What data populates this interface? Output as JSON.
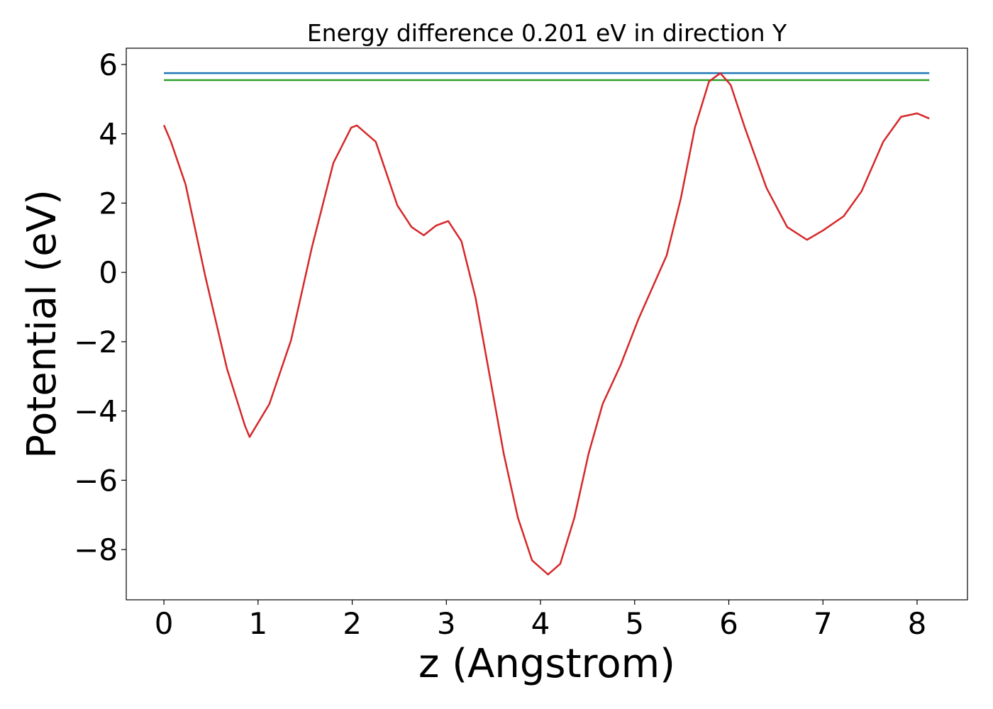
{
  "chart_data": {
    "type": "line",
    "title": "Energy difference 0.201 eV in direction Y",
    "xlabel": "z (Angstrom)",
    "ylabel": "Potential (eV)",
    "series": [
      {
        "color": "#1f77b4",
        "x": [
          0,
          8.13
        ],
        "values": [
          5.75,
          5.75
        ]
      },
      {
        "color": "#2ca02c",
        "x": [
          0,
          8.13
        ],
        "values": [
          5.55,
          5.55
        ]
      },
      {
        "color": "#d62728",
        "x": [
          0,
          0.075,
          0.23,
          0.44,
          0.67,
          0.86,
          0.91,
          1.12,
          1.35,
          1.57,
          1.8,
          1.99,
          2.05,
          2.25,
          2.48,
          2.63,
          2.76,
          2.89,
          3.02,
          3.16,
          3.31,
          3.46,
          3.61,
          3.76,
          3.91,
          4.08,
          4.21,
          4.36,
          4.51,
          4.66,
          4.85,
          5.04,
          5.19,
          5.34,
          5.49,
          5.64,
          5.79,
          5.91,
          6.02,
          6.17,
          6.4,
          6.62,
          6.83,
          7.0,
          7.22,
          7.41,
          7.64,
          7.83,
          8.0,
          8.13
        ],
        "values": [
          4.25,
          3.77,
          2.54,
          -0.12,
          -2.78,
          -4.42,
          -4.75,
          -3.8,
          -1.96,
          0.7,
          3.16,
          4.18,
          4.24,
          3.77,
          1.93,
          1.31,
          1.07,
          1.35,
          1.48,
          0.9,
          -0.73,
          -2.98,
          -5.24,
          -7.08,
          -8.31,
          -8.72,
          -8.41,
          -7.08,
          -5.24,
          -3.8,
          -2.68,
          -1.35,
          -0.43,
          0.49,
          2.13,
          4.18,
          5.51,
          5.75,
          5.41,
          4.18,
          2.44,
          1.31,
          0.94,
          1.21,
          1.62,
          2.34,
          3.77,
          4.49,
          4.59,
          4.44
        ]
      }
    ],
    "xlim": [
      -0.4,
      8.535
    ],
    "ylim": [
      -9.45,
      6.47
    ],
    "xticks": [
      0,
      1,
      2,
      3,
      4,
      5,
      6,
      7,
      8
    ],
    "yticks": [
      {
        "value": -8,
        "label": "−8"
      },
      {
        "value": -6,
        "label": "−6"
      },
      {
        "value": -4,
        "label": "−4"
      },
      {
        "value": -2,
        "label": "−2"
      },
      0,
      2,
      4,
      6
    ]
  }
}
